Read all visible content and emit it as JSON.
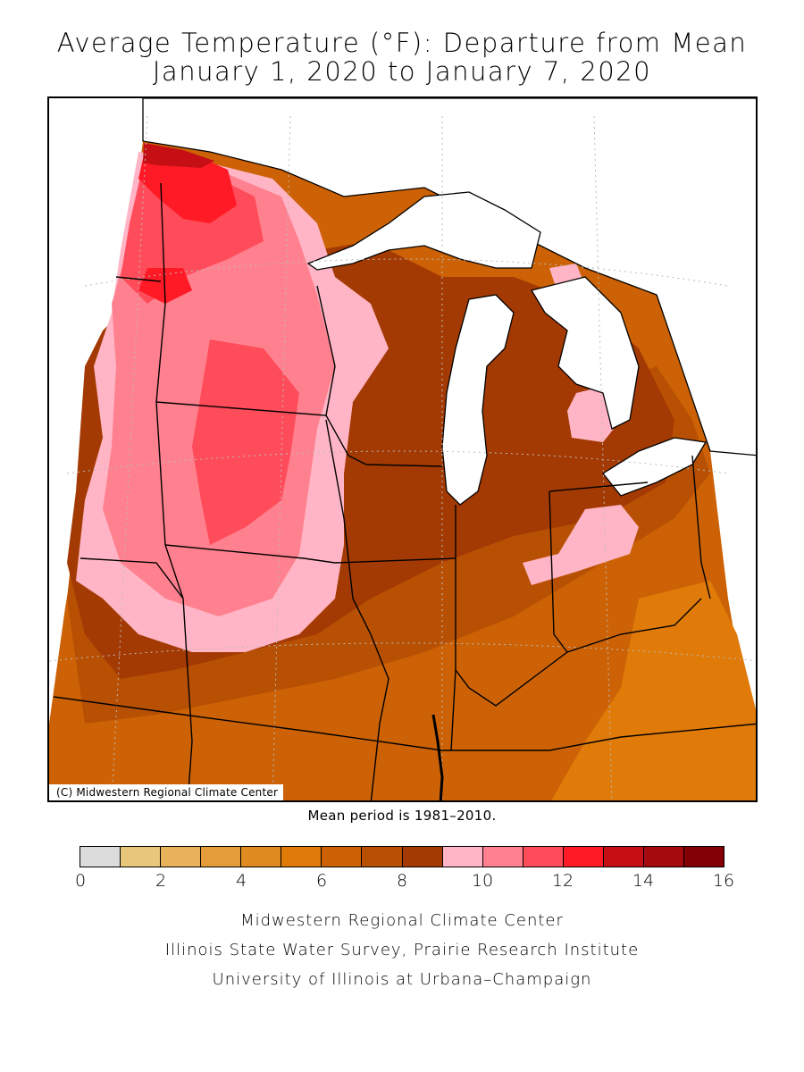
{
  "title_line1": "Average Temperature (°F): Departure from Mean",
  "title_line2": "January 1, 2020 to January 7, 2020",
  "map": {
    "credit": "(C) Midwestern Regional Climate Center",
    "colors": {
      "c5": "#e07a08",
      "c6": "#cc6205",
      "c7": "#b85004",
      "c8": "#a43a03",
      "c9": "#ffb5c5",
      "c10": "#ff808e",
      "c11": "#ff4c5a",
      "c12": "#ff1a26",
      "c13": "#c50f15",
      "lake": "#ffffff",
      "line": "#000000",
      "grid": "#bbbbbb"
    }
  },
  "mean_period": "Mean period is 1981–2010.",
  "legend": {
    "colors": [
      "#dcdcdc",
      "#e8c77a",
      "#e8b35a",
      "#e49c38",
      "#e08a22",
      "#e07a08",
      "#cc6205",
      "#b85004",
      "#a43a03",
      "#ffb5c5",
      "#ff808e",
      "#ff4c5a",
      "#ff1a26",
      "#c50f15",
      "#a50a0f",
      "#830006"
    ],
    "ticks": [
      "0",
      "2",
      "4",
      "6",
      "8",
      "10",
      "12",
      "14",
      "16"
    ]
  },
  "footer": {
    "line1": "Midwestern Regional Climate Center",
    "line2": "Illinois State Water Survey, Prairie Research Institute",
    "line3": "University of Illinois at Urbana–Champaign"
  }
}
